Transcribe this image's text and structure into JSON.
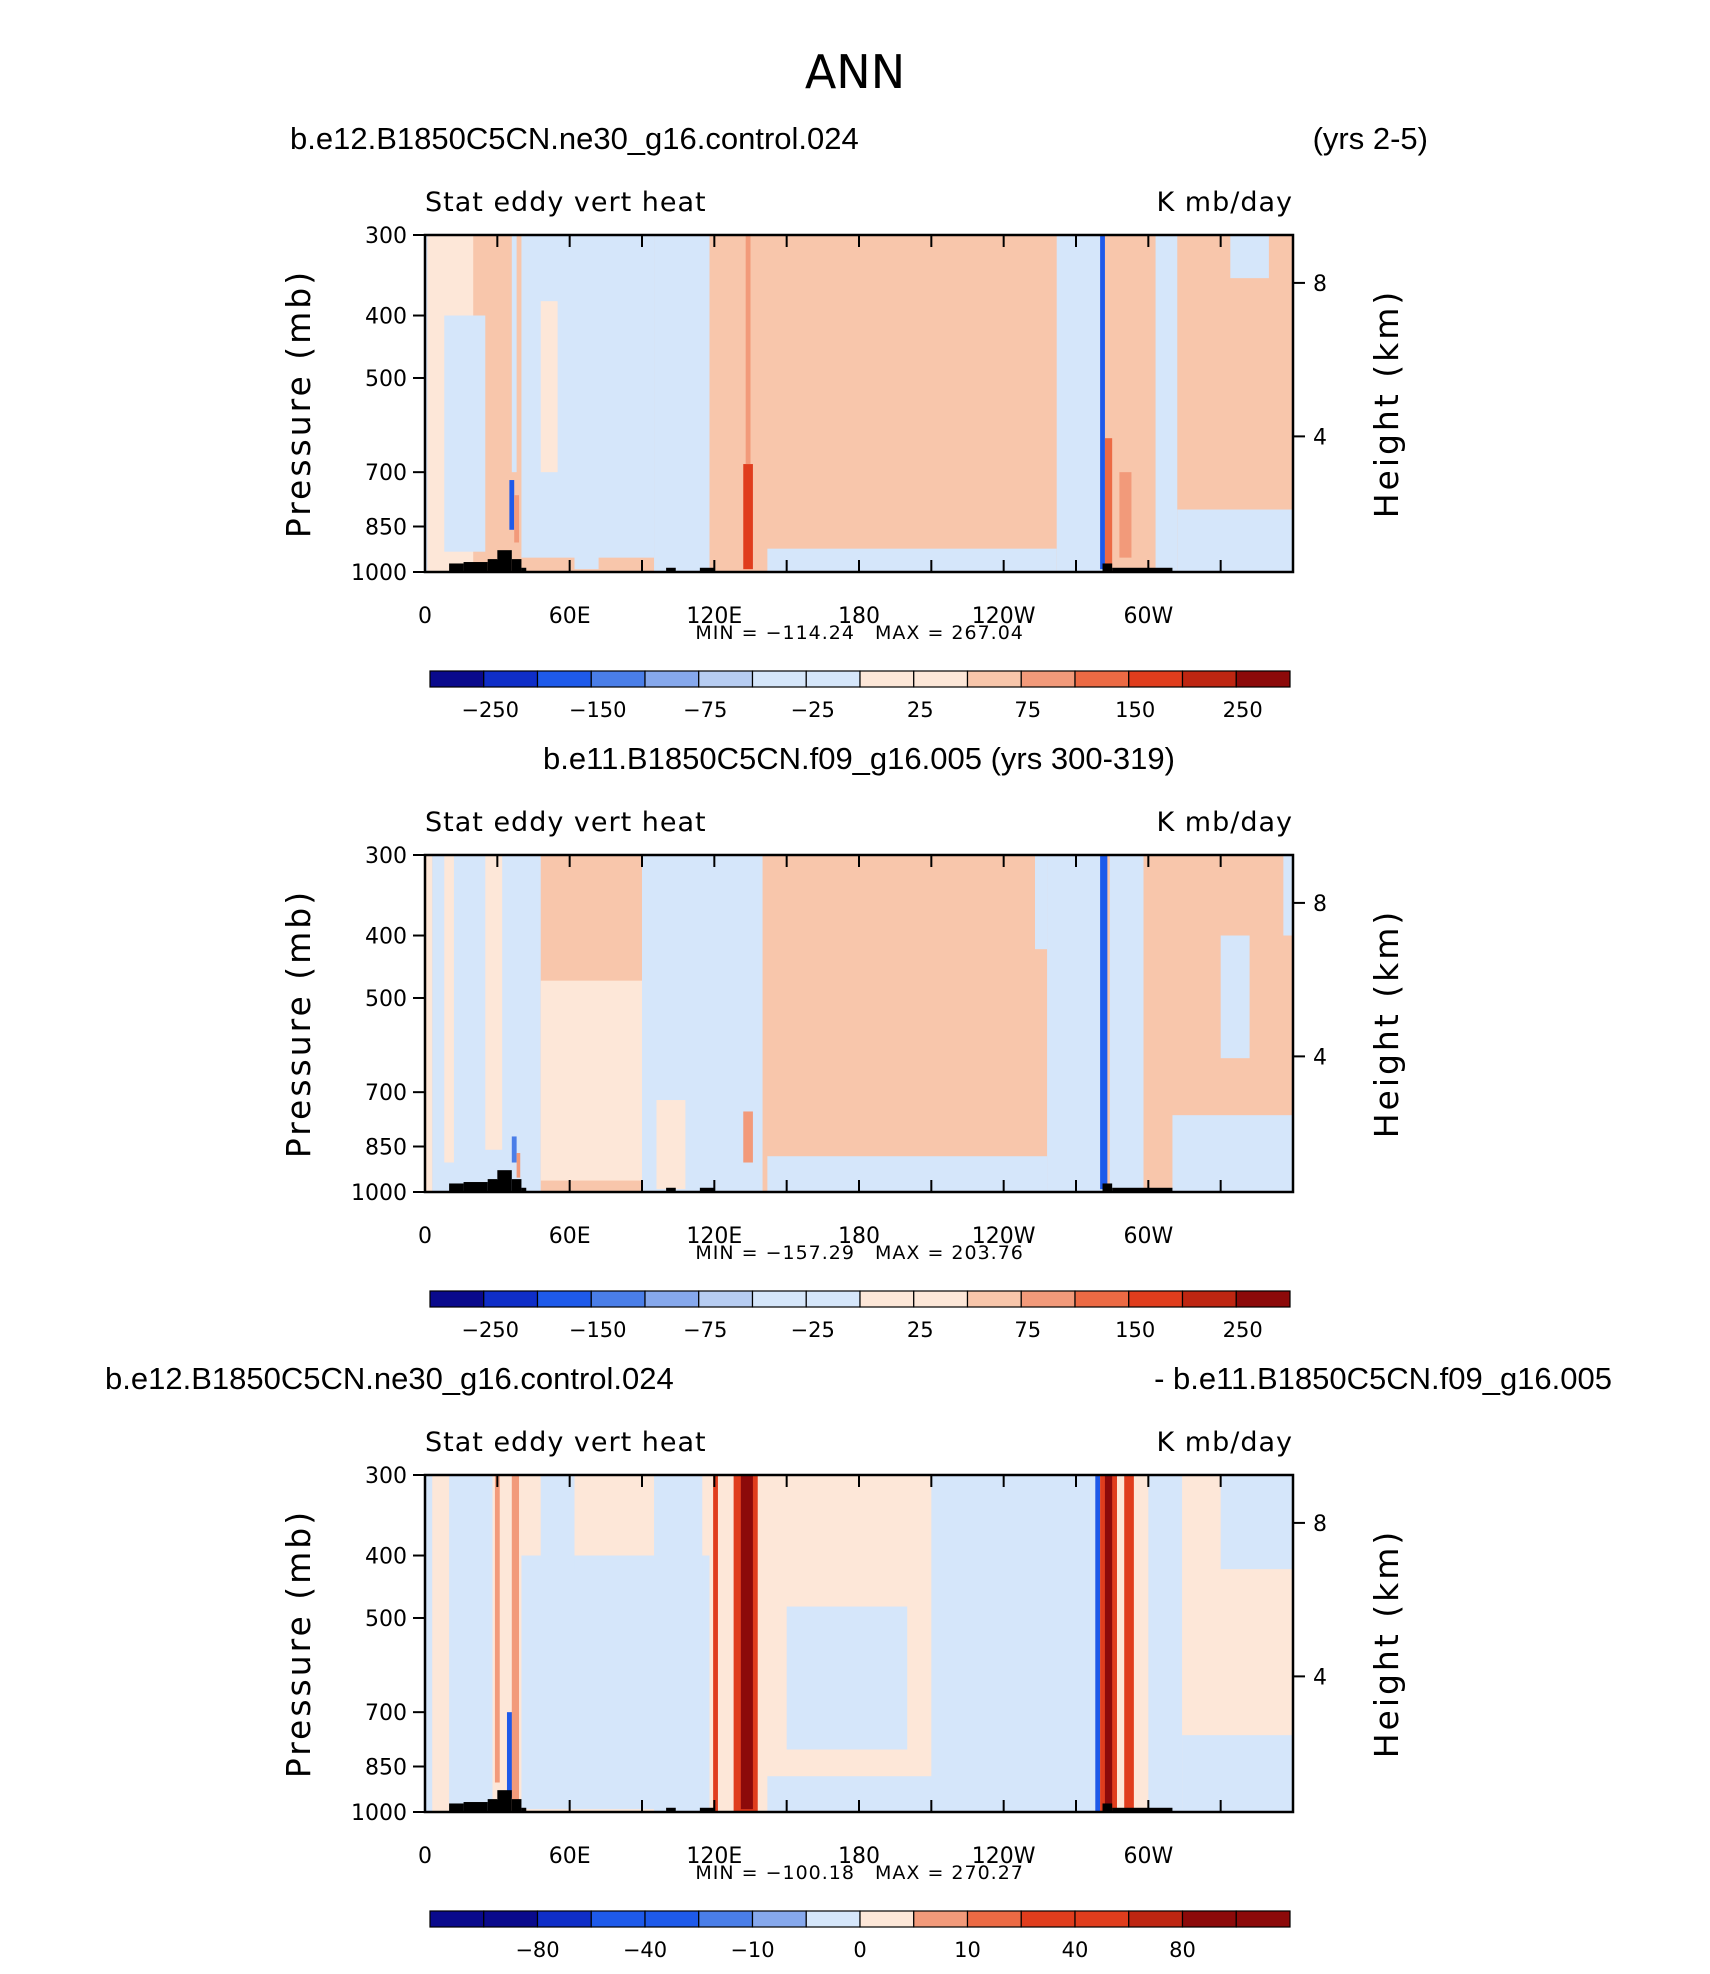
{
  "figure": {
    "title": "ANN"
  },
  "colors": {
    "negative": [
      "#0a0a8c",
      "#0f2ec8",
      "#1e5aea",
      "#4a7ee8",
      "#86a8ec",
      "#b7cdf2",
      "#d5e6fa"
    ],
    "positive": [
      "#fde7d8",
      "#f8c6ab",
      "#f29a7a",
      "#ec6a44",
      "#e03d1d",
      "#be2612",
      "#8c0a0a"
    ],
    "topography": "#000000"
  },
  "chart_data": [
    {
      "type": "heatmap",
      "panel": "model",
      "title_left": "b.e12.B1850C5CN.ne30_g16.control.024",
      "title_right": "(yrs 2-5)",
      "subtitle_left": "Stat eddy vert heat",
      "subtitle_right": "K mb/day",
      "ylabel": "Pressure (mb)",
      "ylabel_right": "Height (km)",
      "y_scale": "log",
      "ylim": [
        1000,
        300
      ],
      "xlim": [
        0,
        360
      ],
      "x_ticks": [
        0,
        30,
        60,
        90,
        120,
        150,
        180,
        210,
        240,
        270,
        300,
        330
      ],
      "x_tick_labels": [
        {
          "x": 0,
          "label": "0"
        },
        {
          "x": 60,
          "label": "60E"
        },
        {
          "x": 120,
          "label": "120E"
        },
        {
          "x": 180,
          "label": "180"
        },
        {
          "x": 240,
          "label": "120W"
        },
        {
          "x": 300,
          "label": "60W"
        }
      ],
      "y_ticks": [
        {
          "p": 300,
          "label": "300"
        },
        {
          "p": 400,
          "label": "400"
        },
        {
          "p": 500,
          "label": "500"
        },
        {
          "p": 700,
          "label": "700"
        },
        {
          "p": 850,
          "label": "850"
        },
        {
          "p": 1000,
          "label": "1000"
        }
      ],
      "height_ticks": [
        {
          "p": 356,
          "label": "8"
        },
        {
          "p": 616,
          "label": "4"
        }
      ],
      "min_text": "MIN = −114.24",
      "max_text": "MAX = 267.04",
      "min": -114.24,
      "max": 267.04,
      "colorbar_labels": [
        "−250",
        "−150",
        "−75",
        "−25",
        "25",
        "75",
        "150",
        "250"
      ],
      "background": 25,
      "columns": [
        {
          "x0": 0,
          "x1": 1,
          "p_top": 300,
          "p_bot": 1000,
          "value": -5
        },
        {
          "x0": 1,
          "x1": 20,
          "p_top": 300,
          "p_bot": 1000,
          "value": 12
        },
        {
          "x0": 8,
          "x1": 25,
          "p_top": 400,
          "p_bot": 930,
          "value": -8
        },
        {
          "x0": 35,
          "x1": 37,
          "p_top": 720,
          "p_bot": 860,
          "value": -80
        },
        {
          "x0": 36,
          "x1": 38,
          "p_top": 300,
          "p_bot": 700,
          "value": -10
        },
        {
          "x0": 37,
          "x1": 39,
          "p_top": 760,
          "p_bot": 900,
          "value": 60
        },
        {
          "x0": 40,
          "x1": 95,
          "p_top": 300,
          "p_bot": 950,
          "value": -8
        },
        {
          "x0": 48,
          "x1": 55,
          "p_top": 380,
          "p_bot": 700,
          "value": 10
        },
        {
          "x0": 62,
          "x1": 72,
          "p_top": 600,
          "p_bot": 990,
          "value": -10
        },
        {
          "x0": 95,
          "x1": 118,
          "p_top": 300,
          "p_bot": 1000,
          "value": -8
        },
        {
          "x0": 120,
          "x1": 121.5,
          "p_top": 300,
          "p_bot": 1000,
          "value": 40
        },
        {
          "x0": 127,
          "x1": 135,
          "p_top": 300,
          "p_bot": 1000,
          "value": 35
        },
        {
          "x0": 132,
          "x1": 136,
          "p_top": 680,
          "p_bot": 990,
          "value": 160
        },
        {
          "x0": 133,
          "x1": 135,
          "p_top": 300,
          "p_bot": 680,
          "value": 60
        },
        {
          "x0": 142,
          "x1": 262,
          "p_top": 920,
          "p_bot": 1000,
          "value": -8
        },
        {
          "x0": 262,
          "x1": 282,
          "p_top": 300,
          "p_bot": 1000,
          "value": -8
        },
        {
          "x0": 280,
          "x1": 282,
          "p_top": 300,
          "p_bot": 990,
          "value": -120
        },
        {
          "x0": 282,
          "x1": 285,
          "p_top": 620,
          "p_bot": 990,
          "value": 140
        },
        {
          "x0": 288,
          "x1": 293,
          "p_top": 700,
          "p_bot": 950,
          "value": 55
        },
        {
          "x0": 303,
          "x1": 312,
          "p_top": 300,
          "p_bot": 1000,
          "value": -8
        },
        {
          "x0": 312,
          "x1": 360,
          "p_top": 800,
          "p_bot": 1000,
          "value": -8
        },
        {
          "x0": 334,
          "x1": 350,
          "p_top": 300,
          "p_bot": 350,
          "value": -8
        }
      ]
    },
    {
      "type": "heatmap",
      "panel": "observations",
      "title_left": "b.e11.B1850C5CN.f09_g16.005 (yrs 300-319)",
      "title_right": "",
      "subtitle_left": "Stat eddy vert heat",
      "subtitle_right": "K mb/day",
      "ylabel": "Pressure (mb)",
      "ylabel_right": "Height (km)",
      "y_scale": "log",
      "ylim": [
        1000,
        300
      ],
      "xlim": [
        0,
        360
      ],
      "x_ticks": [
        0,
        30,
        60,
        90,
        120,
        150,
        180,
        210,
        240,
        270,
        300,
        330
      ],
      "x_tick_labels": [
        {
          "x": 0,
          "label": "0"
        },
        {
          "x": 60,
          "label": "60E"
        },
        {
          "x": 120,
          "label": "120E"
        },
        {
          "x": 180,
          "label": "180"
        },
        {
          "x": 240,
          "label": "120W"
        },
        {
          "x": 300,
          "label": "60W"
        }
      ],
      "y_ticks": [
        {
          "p": 300,
          "label": "300"
        },
        {
          "p": 400,
          "label": "400"
        },
        {
          "p": 500,
          "label": "500"
        },
        {
          "p": 700,
          "label": "700"
        },
        {
          "p": 850,
          "label": "850"
        },
        {
          "p": 1000,
          "label": "1000"
        }
      ],
      "height_ticks": [
        {
          "p": 356,
          "label": "8"
        },
        {
          "p": 616,
          "label": "4"
        }
      ],
      "min_text": "MIN = −157.29",
      "max_text": "MAX = 203.76",
      "min": -157.29,
      "max": 203.76,
      "colorbar_labels": [
        "−250",
        "−150",
        "−75",
        "−25",
        "25",
        "75",
        "150",
        "250"
      ],
      "background": 25,
      "columns": [
        {
          "x0": 0,
          "x1": 3,
          "p_top": 300,
          "p_bot": 1000,
          "value": 12
        },
        {
          "x0": 3,
          "x1": 48,
          "p_top": 300,
          "p_bot": 1000,
          "value": -8
        },
        {
          "x0": 8,
          "x1": 12,
          "p_top": 300,
          "p_bot": 900,
          "value": 12
        },
        {
          "x0": 25,
          "x1": 32,
          "p_top": 300,
          "p_bot": 860,
          "value": 12
        },
        {
          "x0": 48,
          "x1": 95,
          "p_top": 470,
          "p_bot": 960,
          "value": 12
        },
        {
          "x0": 36,
          "x1": 38,
          "p_top": 820,
          "p_bot": 900,
          "value": -70
        },
        {
          "x0": 38,
          "x1": 39.5,
          "p_top": 870,
          "p_bot": 950,
          "value": 60
        },
        {
          "x0": 90,
          "x1": 140,
          "p_top": 300,
          "p_bot": 1000,
          "value": -8
        },
        {
          "x0": 96,
          "x1": 108,
          "p_top": 720,
          "p_bot": 990,
          "value": 12
        },
        {
          "x0": 132,
          "x1": 136,
          "p_top": 750,
          "p_bot": 900,
          "value": 55
        },
        {
          "x0": 142,
          "x1": 258,
          "p_top": 880,
          "p_bot": 1000,
          "value": -8
        },
        {
          "x0": 253,
          "x1": 258,
          "p_top": 300,
          "p_bot": 420,
          "value": -8
        },
        {
          "x0": 258,
          "x1": 282,
          "p_top": 300,
          "p_bot": 1000,
          "value": -8
        },
        {
          "x0": 280,
          "x1": 283,
          "p_top": 300,
          "p_bot": 990,
          "value": -110
        },
        {
          "x0": 284,
          "x1": 298,
          "p_top": 300,
          "p_bot": 1000,
          "value": -8
        },
        {
          "x0": 310,
          "x1": 360,
          "p_top": 760,
          "p_bot": 1000,
          "value": -8
        },
        {
          "x0": 330,
          "x1": 342,
          "p_top": 400,
          "p_bot": 620,
          "value": -8
        },
        {
          "x0": 356,
          "x1": 360,
          "p_top": 300,
          "p_bot": 400,
          "value": -8
        }
      ]
    },
    {
      "type": "heatmap",
      "panel": "difference",
      "title_left": "b.e12.B1850C5CN.ne30_g16.control.024",
      "title_right": "- b.e11.B1850C5CN.f09_g16.005",
      "subtitle_left": "Stat eddy vert heat",
      "subtitle_right": "K mb/day",
      "ylabel": "Pressure (mb)",
      "ylabel_right": "Height (km)",
      "y_scale": "log",
      "ylim": [
        1000,
        300
      ],
      "xlim": [
        0,
        360
      ],
      "x_ticks": [
        0,
        30,
        60,
        90,
        120,
        150,
        180,
        210,
        240,
        270,
        300,
        330
      ],
      "x_tick_labels": [
        {
          "x": 0,
          "label": "0"
        },
        {
          "x": 60,
          "label": "60E"
        },
        {
          "x": 120,
          "label": "120E"
        },
        {
          "x": 180,
          "label": "180"
        },
        {
          "x": 240,
          "label": "120W"
        },
        {
          "x": 300,
          "label": "60W"
        }
      ],
      "y_ticks": [
        {
          "p": 300,
          "label": "300"
        },
        {
          "p": 400,
          "label": "400"
        },
        {
          "p": 500,
          "label": "500"
        },
        {
          "p": 700,
          "label": "700"
        },
        {
          "p": 850,
          "label": "850"
        },
        {
          "p": 1000,
          "label": "1000"
        }
      ],
      "height_ticks": [
        {
          "p": 356,
          "label": "8"
        },
        {
          "p": 616,
          "label": "4"
        }
      ],
      "min_text": "MIN = −100.18",
      "max_text": "MAX = 270.27",
      "min": -100.18,
      "max": 270.27,
      "colorbar_labels": [
        "−80",
        "−40",
        "−10",
        "0",
        "10",
        "40",
        "80"
      ],
      "background": 5,
      "columns": [
        {
          "x0": 0,
          "x1": 3,
          "p_top": 300,
          "p_bot": 1000,
          "value": -3
        },
        {
          "x0": 10,
          "x1": 28,
          "p_top": 300,
          "p_bot": 1000,
          "value": -3
        },
        {
          "x0": 28,
          "x1": 32,
          "p_top": 300,
          "p_bot": 1000,
          "value": 8
        },
        {
          "x0": 29,
          "x1": 31,
          "p_top": 300,
          "p_bot": 900,
          "value": 25
        },
        {
          "x0": 34,
          "x1": 37,
          "p_top": 700,
          "p_bot": 950,
          "value": -45
        },
        {
          "x0": 36,
          "x1": 39,
          "p_top": 300,
          "p_bot": 1000,
          "value": 30
        },
        {
          "x0": 40,
          "x1": 118,
          "p_top": 400,
          "p_bot": 990,
          "value": -3
        },
        {
          "x0": 48,
          "x1": 62,
          "p_top": 300,
          "p_bot": 420,
          "value": -3
        },
        {
          "x0": 95,
          "x1": 115,
          "p_top": 300,
          "p_bot": 1000,
          "value": -3
        },
        {
          "x0": 119.5,
          "x1": 121.5,
          "p_top": 300,
          "p_bot": 1000,
          "value": 70
        },
        {
          "x0": 128,
          "x1": 138,
          "p_top": 300,
          "p_bot": 1000,
          "value": 45
        },
        {
          "x0": 131,
          "x1": 136,
          "p_top": 300,
          "p_bot": 990,
          "value": 90
        },
        {
          "x0": 132,
          "x1": 135,
          "p_top": 720,
          "p_bot": 960,
          "value": 150
        },
        {
          "x0": 142,
          "x1": 262,
          "p_top": 880,
          "p_bot": 1000,
          "value": -3
        },
        {
          "x0": 150,
          "x1": 200,
          "p_top": 480,
          "p_bot": 800,
          "value": -3
        },
        {
          "x0": 210,
          "x1": 278,
          "p_top": 300,
          "p_bot": 1000,
          "value": -3
        },
        {
          "x0": 278,
          "x1": 280,
          "p_top": 300,
          "p_bot": 1000,
          "value": -60
        },
        {
          "x0": 280,
          "x1": 287,
          "p_top": 300,
          "p_bot": 1000,
          "value": 45
        },
        {
          "x0": 282,
          "x1": 285,
          "p_top": 300,
          "p_bot": 990,
          "value": 90
        },
        {
          "x0": 290,
          "x1": 294,
          "p_top": 300,
          "p_bot": 990,
          "value": 55
        },
        {
          "x0": 300,
          "x1": 314,
          "p_top": 300,
          "p_bot": 1000,
          "value": -3
        },
        {
          "x0": 314,
          "x1": 360,
          "p_top": 760,
          "p_bot": 1000,
          "value": -3
        },
        {
          "x0": 330,
          "x1": 360,
          "p_top": 300,
          "p_bot": 420,
          "value": -3
        }
      ]
    }
  ],
  "topography": [
    {
      "x0": 10,
      "x1": 16,
      "p": 970
    },
    {
      "x0": 16,
      "x1": 26,
      "p": 965
    },
    {
      "x0": 26,
      "x1": 30,
      "p": 955
    },
    {
      "x0": 30,
      "x1": 36,
      "p": 925
    },
    {
      "x0": 36,
      "x1": 40,
      "p": 955
    },
    {
      "x0": 40,
      "x1": 42,
      "p": 985
    },
    {
      "x0": 100,
      "x1": 104,
      "p": 985
    },
    {
      "x0": 114,
      "x1": 120,
      "p": 985
    },
    {
      "x0": 281,
      "x1": 285,
      "p": 970
    },
    {
      "x0": 285,
      "x1": 310,
      "p": 985
    }
  ]
}
